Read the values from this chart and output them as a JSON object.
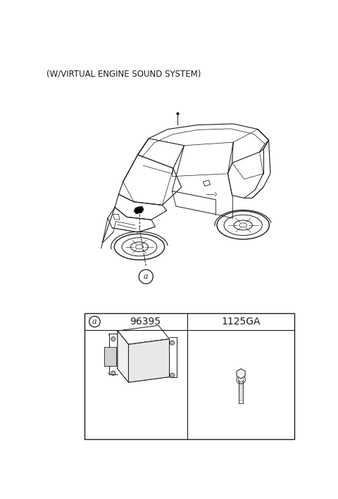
{
  "title": "(W/VIRTUAL ENGINE SOUND SYSTEM)",
  "title_fontsize": 8.5,
  "bg_color": "#ffffff",
  "line_color": "#1a1a1a",
  "part_table": {
    "label": "a",
    "col1_code": "96395",
    "col2_code": "1125GA"
  }
}
